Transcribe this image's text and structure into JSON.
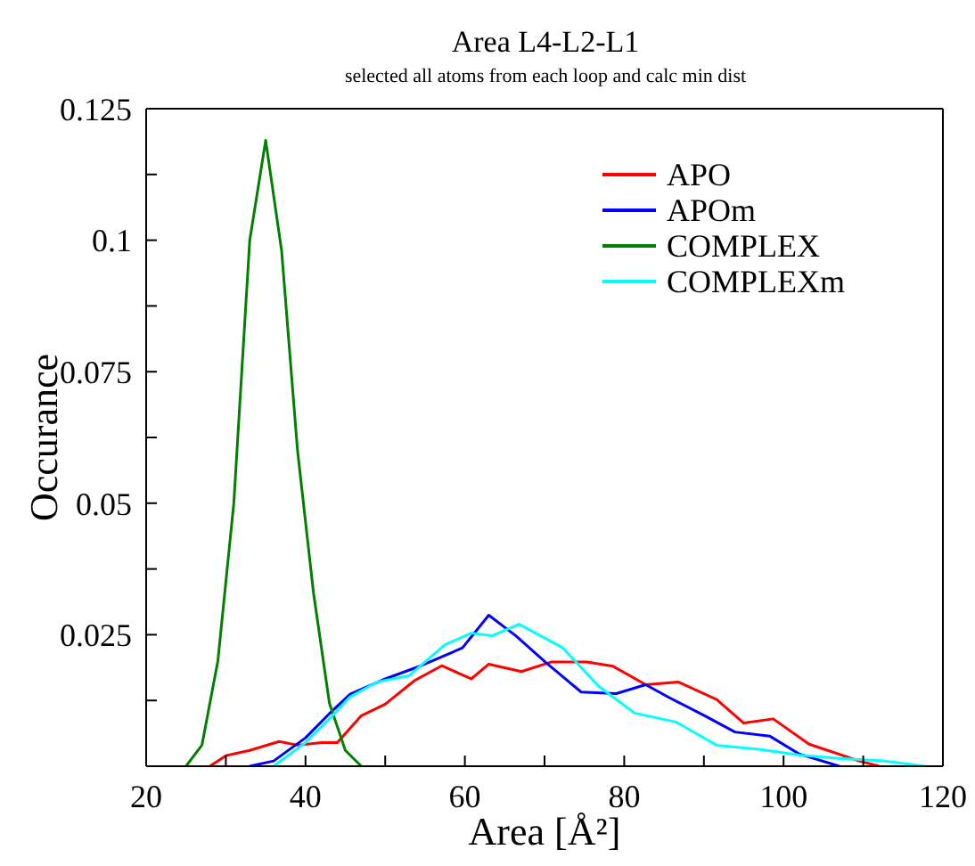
{
  "chart_data": {
    "type": "line",
    "title": "Area L4-L2-L1",
    "subtitle": "selected all atoms from each loop and calc min dist",
    "xlabel": "Area [Å²]",
    "ylabel": "Occurance",
    "xlim": [
      20,
      120
    ],
    "xticks": [
      20,
      {
        "value": 30,
        "label": null
      },
      40,
      {
        "value": 50,
        "label": null
      },
      60,
      {
        "value": 70,
        "label": null
      },
      80,
      {
        "value": 90,
        "label": null
      },
      100,
      {
        "value": 110,
        "label": null
      },
      120
    ],
    "ylim": [
      0,
      0.125
    ],
    "yticks": [
      {
        "value": 0,
        "label": null
      },
      {
        "value": 0.0125,
        "label": null
      },
      0.025,
      {
        "value": 0.0375,
        "label": null
      },
      0.05,
      {
        "value": 0.0625,
        "label": null
      },
      0.075,
      {
        "value": 0.0875,
        "label": null
      },
      0.1,
      {
        "value": 0.1125,
        "label": null
      },
      0.125
    ],
    "legend": "top right",
    "marker": "none",
    "line_style": "solid",
    "series": [
      {
        "name": "APO",
        "color": "#ff0000",
        "x": [
          28,
          30,
          33,
          36.7,
          39,
          42,
          44,
          47,
          50,
          53.7,
          57.1,
          60.8,
          63,
          67.1,
          70.8,
          75.3,
          78.6,
          82.7,
          86.8,
          91.6,
          95,
          98.7,
          103.2,
          109.5,
          112
        ],
        "values": [
          0,
          0.002,
          0.003,
          0.0047,
          0.004,
          0.0045,
          0.0045,
          0.0096,
          0.0118,
          0.0163,
          0.0191,
          0.0166,
          0.0194,
          0.018,
          0.0198,
          0.0198,
          0.019,
          0.0155,
          0.016,
          0.0127,
          0.0082,
          0.009,
          0.0042,
          0.001,
          0
        ]
      },
      {
        "name": "APOm",
        "color": "#0000ff",
        "x": [
          33,
          36,
          40,
          43,
          45.6,
          50,
          54.5,
          59.7,
          63,
          66.4,
          70.1,
          74.6,
          79,
          82.7,
          85.7,
          90.1,
          93.9,
          98.3,
          102,
          107
        ],
        "values": [
          0,
          0.001,
          0.0054,
          0.01,
          0.0137,
          0.0166,
          0.0191,
          0.0225,
          0.0287,
          0.0248,
          0.0198,
          0.0141,
          0.0138,
          0.0155,
          0.013,
          0.0096,
          0.0065,
          0.0057,
          0.0023,
          0
        ]
      },
      {
        "name": "COMPLEX",
        "color": "#008000",
        "x": [
          25,
          27,
          29,
          31,
          33,
          35,
          37,
          39,
          41,
          43,
          45,
          47
        ],
        "values": [
          0,
          0.004,
          0.02,
          0.05,
          0.1,
          0.119,
          0.098,
          0.06,
          0.033,
          0.012,
          0.003,
          0
        ]
      },
      {
        "name": "COMPLEXm",
        "color": "#00ffff",
        "x": [
          36,
          40,
          43,
          45.6,
          49,
          53,
          57.5,
          60.8,
          63.4,
          66.8,
          72.3,
          76.8,
          81.3,
          86.5,
          91.6,
          96.9,
          102,
          107,
          112.5,
          117.7
        ],
        "values": [
          0,
          0.0045,
          0.009,
          0.0132,
          0.016,
          0.0172,
          0.0231,
          0.0253,
          0.0248,
          0.027,
          0.0225,
          0.0152,
          0.0101,
          0.0084,
          0.004,
          0.0032,
          0.0021,
          0.0015,
          0.001,
          0
        ]
      }
    ]
  }
}
